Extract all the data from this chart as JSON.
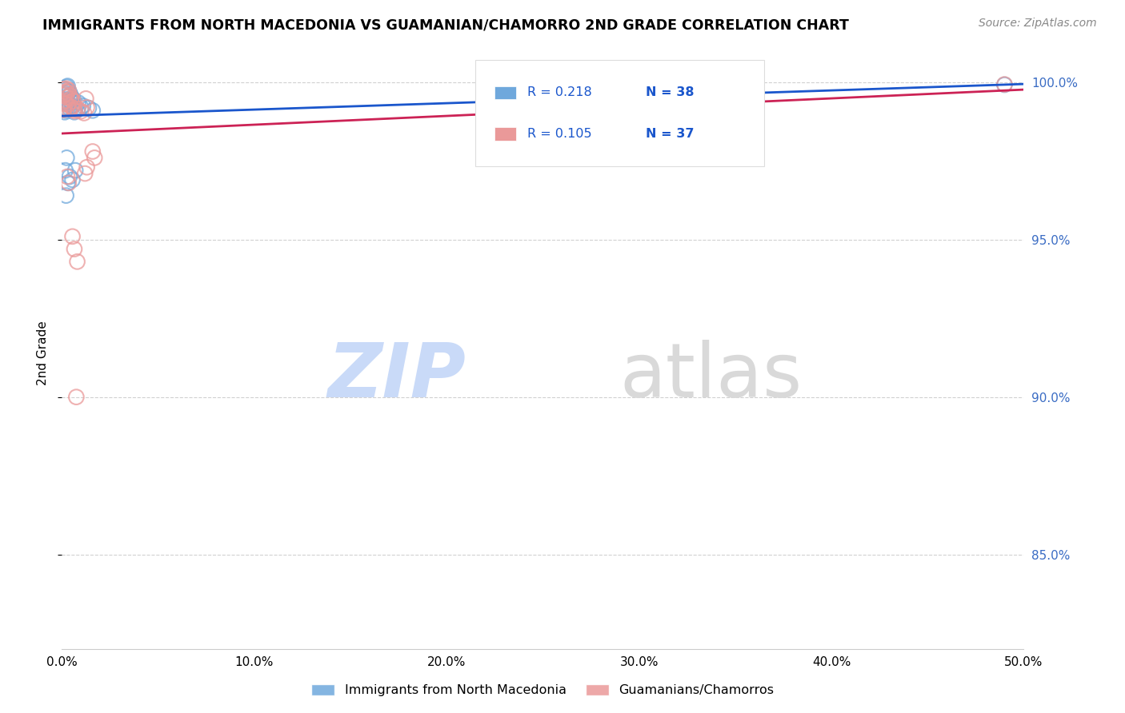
{
  "title": "IMMIGRANTS FROM NORTH MACEDONIA VS GUAMANIAN/CHAMORRO 2ND GRADE CORRELATION CHART",
  "source": "Source: ZipAtlas.com",
  "ylabel": "2nd Grade",
  "legend_blue_r": "0.218",
  "legend_blue_n": "38",
  "legend_pink_r": "0.105",
  "legend_pink_n": "37",
  "blue_color": "#6fa8dc",
  "pink_color": "#ea9999",
  "blue_line_color": "#1a56cc",
  "pink_line_color": "#cc2255",
  "blue_scatter": [
    [
      0.0008,
      0.998
    ],
    [
      0.0015,
      0.9965
    ],
    [
      0.001,
      0.996
    ],
    [
      0.002,
      0.9975
    ],
    [
      0.0018,
      0.9945
    ],
    [
      0.0012,
      0.994
    ],
    [
      0.0025,
      0.9985
    ],
    [
      0.0022,
      0.9935
    ],
    [
      0.0016,
      0.992
    ],
    [
      0.001,
      0.9915
    ],
    [
      0.003,
      0.9988
    ],
    [
      0.0028,
      0.9955
    ],
    [
      0.0022,
      0.991
    ],
    [
      0.0015,
      0.9905
    ],
    [
      0.0038,
      0.997
    ],
    [
      0.0032,
      0.993
    ],
    [
      0.0045,
      0.996
    ],
    [
      0.004,
      0.9918
    ],
    [
      0.0052,
      0.995
    ],
    [
      0.0048,
      0.9938
    ],
    [
      0.006,
      0.9945
    ],
    [
      0.0055,
      0.9925
    ],
    [
      0.007,
      0.9918
    ],
    [
      0.0065,
      0.9905
    ],
    [
      0.0085,
      0.9935
    ],
    [
      0.008,
      0.9912
    ],
    [
      0.01,
      0.992
    ],
    [
      0.011,
      0.9925
    ],
    [
      0.014,
      0.9918
    ],
    [
      0.016,
      0.991
    ],
    [
      0.0025,
      0.976
    ],
    [
      0.0018,
      0.972
    ],
    [
      0.003,
      0.968
    ],
    [
      0.0022,
      0.964
    ],
    [
      0.004,
      0.97
    ],
    [
      0.0055,
      0.969
    ],
    [
      0.007,
      0.972
    ],
    [
      0.49,
      0.9992
    ]
  ],
  "pink_scatter": [
    [
      0.0008,
      0.9978
    ],
    [
      0.0015,
      0.9962
    ],
    [
      0.001,
      0.9958
    ],
    [
      0.0018,
      0.997
    ],
    [
      0.0016,
      0.9942
    ],
    [
      0.0012,
      0.9938
    ],
    [
      0.0022,
      0.998
    ],
    [
      0.002,
      0.9932
    ],
    [
      0.0014,
      0.9918
    ],
    [
      0.0009,
      0.9912
    ],
    [
      0.0028,
      0.9968
    ],
    [
      0.0025,
      0.9952
    ],
    [
      0.0035,
      0.9975
    ],
    [
      0.003,
      0.9928
    ],
    [
      0.0042,
      0.9958
    ],
    [
      0.0038,
      0.9915
    ],
    [
      0.0048,
      0.9948
    ],
    [
      0.0052,
      0.992
    ],
    [
      0.006,
      0.994
    ],
    [
      0.0062,
      0.9912
    ],
    [
      0.0068,
      0.9908
    ],
    [
      0.0082,
      0.9915
    ],
    [
      0.01,
      0.9908
    ],
    [
      0.0115,
      0.9902
    ],
    [
      0.0125,
      0.9948
    ],
    [
      0.013,
      0.992
    ],
    [
      0.013,
      0.973
    ],
    [
      0.012,
      0.971
    ],
    [
      0.016,
      0.978
    ],
    [
      0.017,
      0.976
    ],
    [
      0.0055,
      0.951
    ],
    [
      0.0065,
      0.947
    ],
    [
      0.008,
      0.943
    ],
    [
      0.0075,
      0.9
    ],
    [
      0.0028,
      0.97
    ],
    [
      0.0035,
      0.968
    ],
    [
      0.49,
      0.9993
    ]
  ],
  "xlim": [
    0.0,
    0.5
  ],
  "ylim": [
    0.82,
    1.008
  ],
  "yticks": [
    0.85,
    0.9,
    0.95,
    1.0
  ],
  "xticks": [
    0.0,
    0.1,
    0.2,
    0.3,
    0.4,
    0.5
  ],
  "watermark_zip_color": "#c9daf8",
  "watermark_atlas_color": "#d9d9d9",
  "label_blue": "Immigrants from North Macedonia",
  "label_pink": "Guamanians/Chamorros"
}
